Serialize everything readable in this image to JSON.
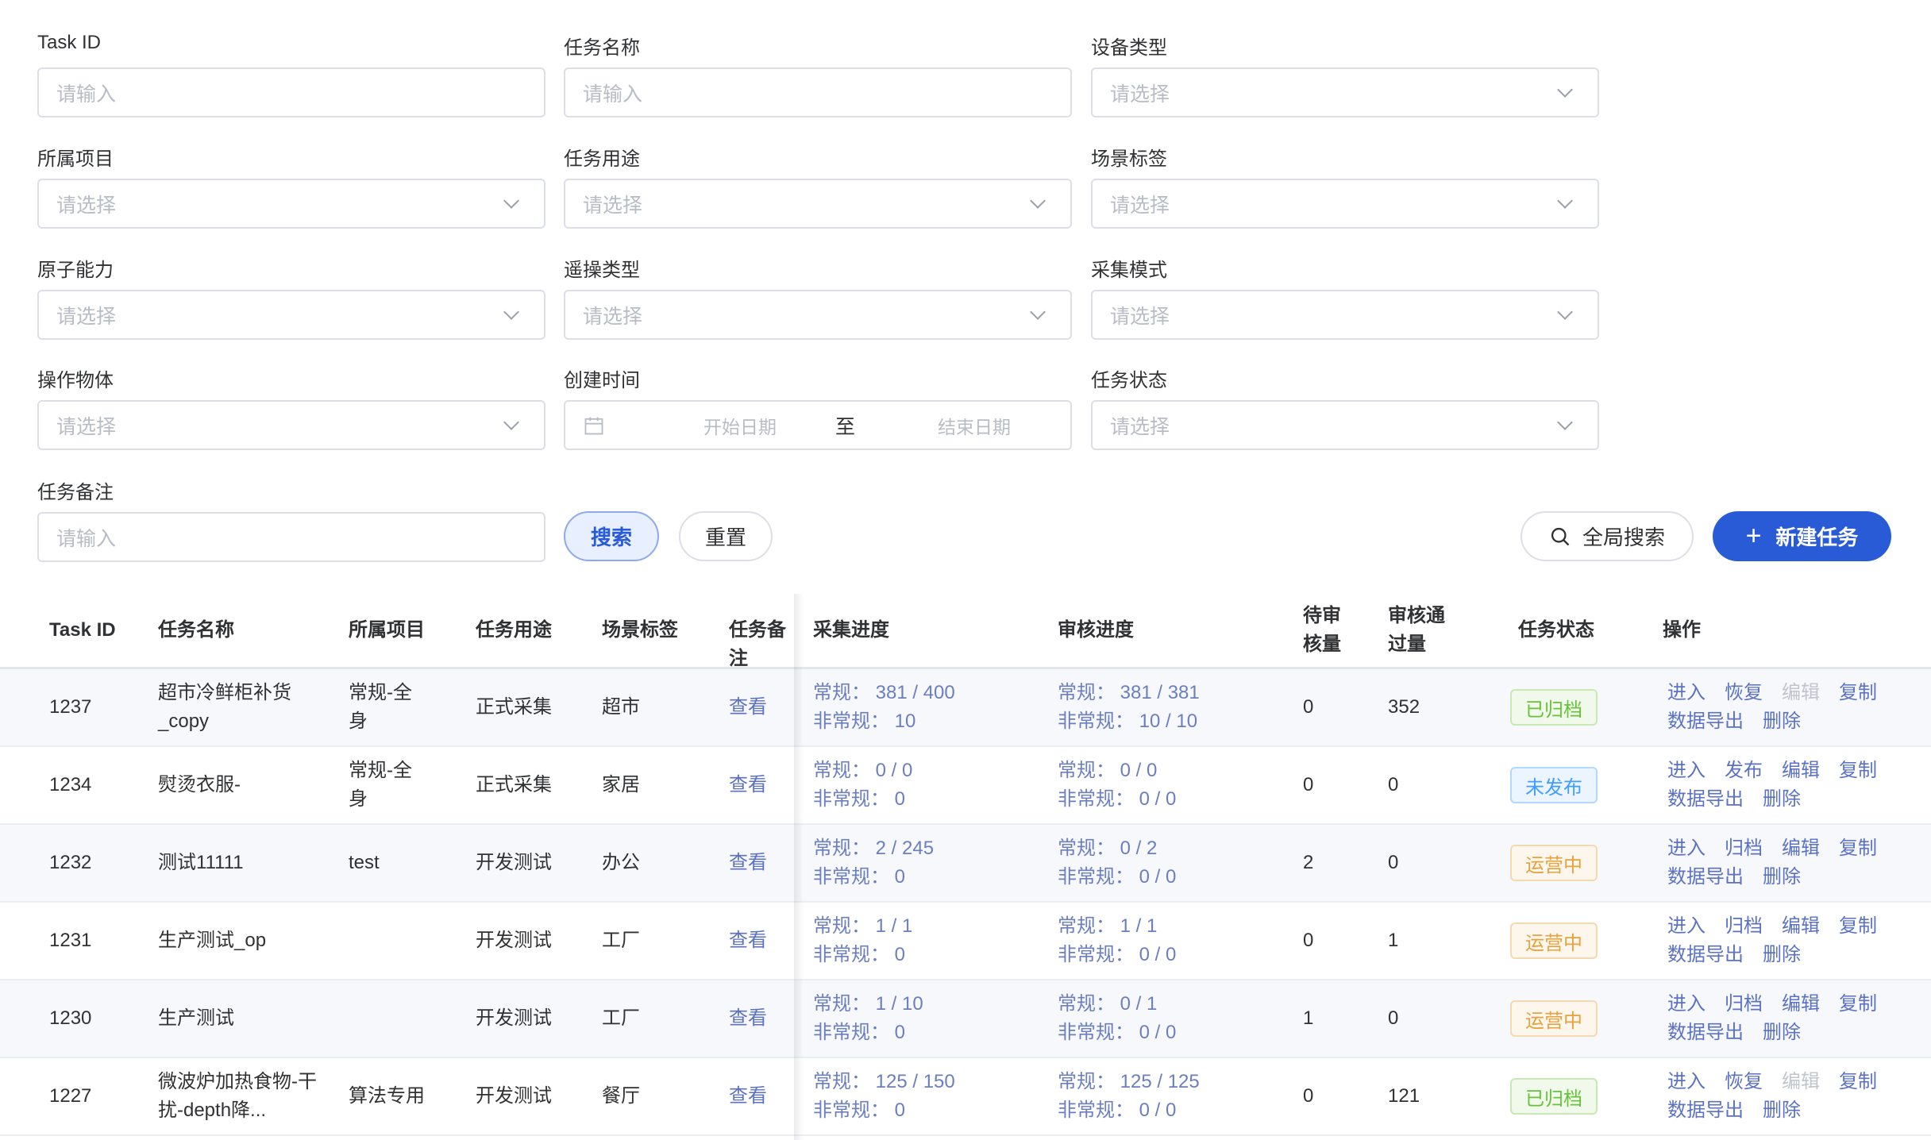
{
  "filters": [
    {
      "label": "Task ID",
      "placeholder": "请输入",
      "type": "input"
    },
    {
      "label": "任务名称",
      "placeholder": "请输入",
      "type": "input"
    },
    {
      "label": "设备类型",
      "placeholder": "请选择",
      "type": "select"
    },
    {
      "label": "所属项目",
      "placeholder": "请选择",
      "type": "select"
    },
    {
      "label": "任务用途",
      "placeholder": "请选择",
      "type": "select"
    },
    {
      "label": "场景标签",
      "placeholder": "请选择",
      "type": "select"
    },
    {
      "label": "原子能力",
      "placeholder": "请选择",
      "type": "select"
    },
    {
      "label": "遥操类型",
      "placeholder": "请选择",
      "type": "select"
    },
    {
      "label": "采集模式",
      "placeholder": "请选择",
      "type": "select"
    },
    {
      "label": "操作物体",
      "placeholder": "请选择",
      "type": "select"
    },
    {
      "label": "创建时间",
      "type": "daterange",
      "start": "开始日期",
      "sep": "至",
      "end": "结束日期"
    },
    {
      "label": "任务状态",
      "placeholder": "请选择",
      "type": "select"
    },
    {
      "label": "任务备注",
      "placeholder": "请输入",
      "type": "input"
    }
  ],
  "buttons": {
    "search": "搜索",
    "reset": "重置",
    "global_search": "全局搜索",
    "new_task": "新建任务"
  },
  "colors": {
    "primary": "#2a5bd7",
    "link": "#5b72c4"
  },
  "table": {
    "headers": [
      "Task ID",
      "任务名称",
      "所属项目",
      "任务用途",
      "场景标签",
      "任务备注",
      "采集进度",
      "审核进度",
      "待审核量",
      "审核通过量",
      "任务状态",
      "操作"
    ],
    "rows": [
      {
        "id": "1237",
        "name": "超市冷鲜柜补货_copy",
        "project": "常规-全身",
        "use": "正式采集",
        "scene": "超市",
        "note": "查看",
        "collect": [
          "常规： 381 / 400",
          "非常规： 10"
        ],
        "review": [
          "常规： 381 / 381",
          "非常规： 10 / 10"
        ],
        "pending": "0",
        "passed": "352",
        "status": "已归档",
        "status_kind": "green",
        "ops": [
          [
            "进入",
            1
          ],
          [
            "恢复",
            1
          ],
          [
            "编辑",
            0
          ],
          [
            "复制",
            1
          ],
          [
            "数据导出",
            1
          ],
          [
            "删除",
            1
          ]
        ]
      },
      {
        "id": "1234",
        "name": "熨烫衣服-",
        "project": "常规-全身",
        "use": "正式采集",
        "scene": "家居",
        "note": "查看",
        "collect": [
          "常规： 0 / 0",
          "非常规： 0"
        ],
        "review": [
          "常规： 0 / 0",
          "非常规： 0 / 0"
        ],
        "pending": "0",
        "passed": "0",
        "status": "未发布",
        "status_kind": "blue",
        "ops": [
          [
            "进入",
            1
          ],
          [
            "发布",
            1
          ],
          [
            "编辑",
            1
          ],
          [
            "复制",
            1
          ],
          [
            "数据导出",
            1
          ],
          [
            "删除",
            1
          ]
        ]
      },
      {
        "id": "1232",
        "name": "测试11111",
        "project": "test",
        "use": "开发测试",
        "scene": "办公",
        "note": "查看",
        "collect": [
          "常规： 2 / 245",
          "非常规： 0"
        ],
        "review": [
          "常规： 0 / 2",
          "非常规： 0 / 0"
        ],
        "pending": "2",
        "passed": "0",
        "status": "运营中",
        "status_kind": "orange",
        "ops": [
          [
            "进入",
            1
          ],
          [
            "归档",
            1
          ],
          [
            "编辑",
            1
          ],
          [
            "复制",
            1
          ],
          [
            "数据导出",
            1
          ],
          [
            "删除",
            1
          ]
        ]
      },
      {
        "id": "1231",
        "name": "生产测试_op",
        "project": "",
        "use": "开发测试",
        "scene": "工厂",
        "note": "查看",
        "collect": [
          "常规： 1 / 1",
          "非常规： 0"
        ],
        "review": [
          "常规： 1 / 1",
          "非常规： 0 / 0"
        ],
        "pending": "0",
        "passed": "1",
        "status": "运营中",
        "status_kind": "orange",
        "ops": [
          [
            "进入",
            1
          ],
          [
            "归档",
            1
          ],
          [
            "编辑",
            1
          ],
          [
            "复制",
            1
          ],
          [
            "数据导出",
            1
          ],
          [
            "删除",
            1
          ]
        ]
      },
      {
        "id": "1230",
        "name": "生产测试",
        "project": "",
        "use": "开发测试",
        "scene": "工厂",
        "note": "查看",
        "collect": [
          "常规： 1 / 10",
          "非常规： 0"
        ],
        "review": [
          "常规： 0 / 1",
          "非常规： 0 / 0"
        ],
        "pending": "1",
        "passed": "0",
        "status": "运营中",
        "status_kind": "orange",
        "ops": [
          [
            "进入",
            1
          ],
          [
            "归档",
            1
          ],
          [
            "编辑",
            1
          ],
          [
            "复制",
            1
          ],
          [
            "数据导出",
            1
          ],
          [
            "删除",
            1
          ]
        ]
      },
      {
        "id": "1227",
        "name": "微波炉加热食物-干扰-depth降...",
        "project": "算法专用",
        "use": "开发测试",
        "scene": "餐厅",
        "note": "查看",
        "collect": [
          "常规： 125 / 150",
          "非常规： 0"
        ],
        "review": [
          "常规： 125 / 125",
          "非常规： 0 / 0"
        ],
        "pending": "0",
        "passed": "121",
        "status": "已归档",
        "status_kind": "green",
        "ops": [
          [
            "进入",
            1
          ],
          [
            "恢复",
            1
          ],
          [
            "编辑",
            0
          ],
          [
            "复制",
            1
          ],
          [
            "数据导出",
            1
          ],
          [
            "删除",
            1
          ]
        ]
      }
    ]
  }
}
